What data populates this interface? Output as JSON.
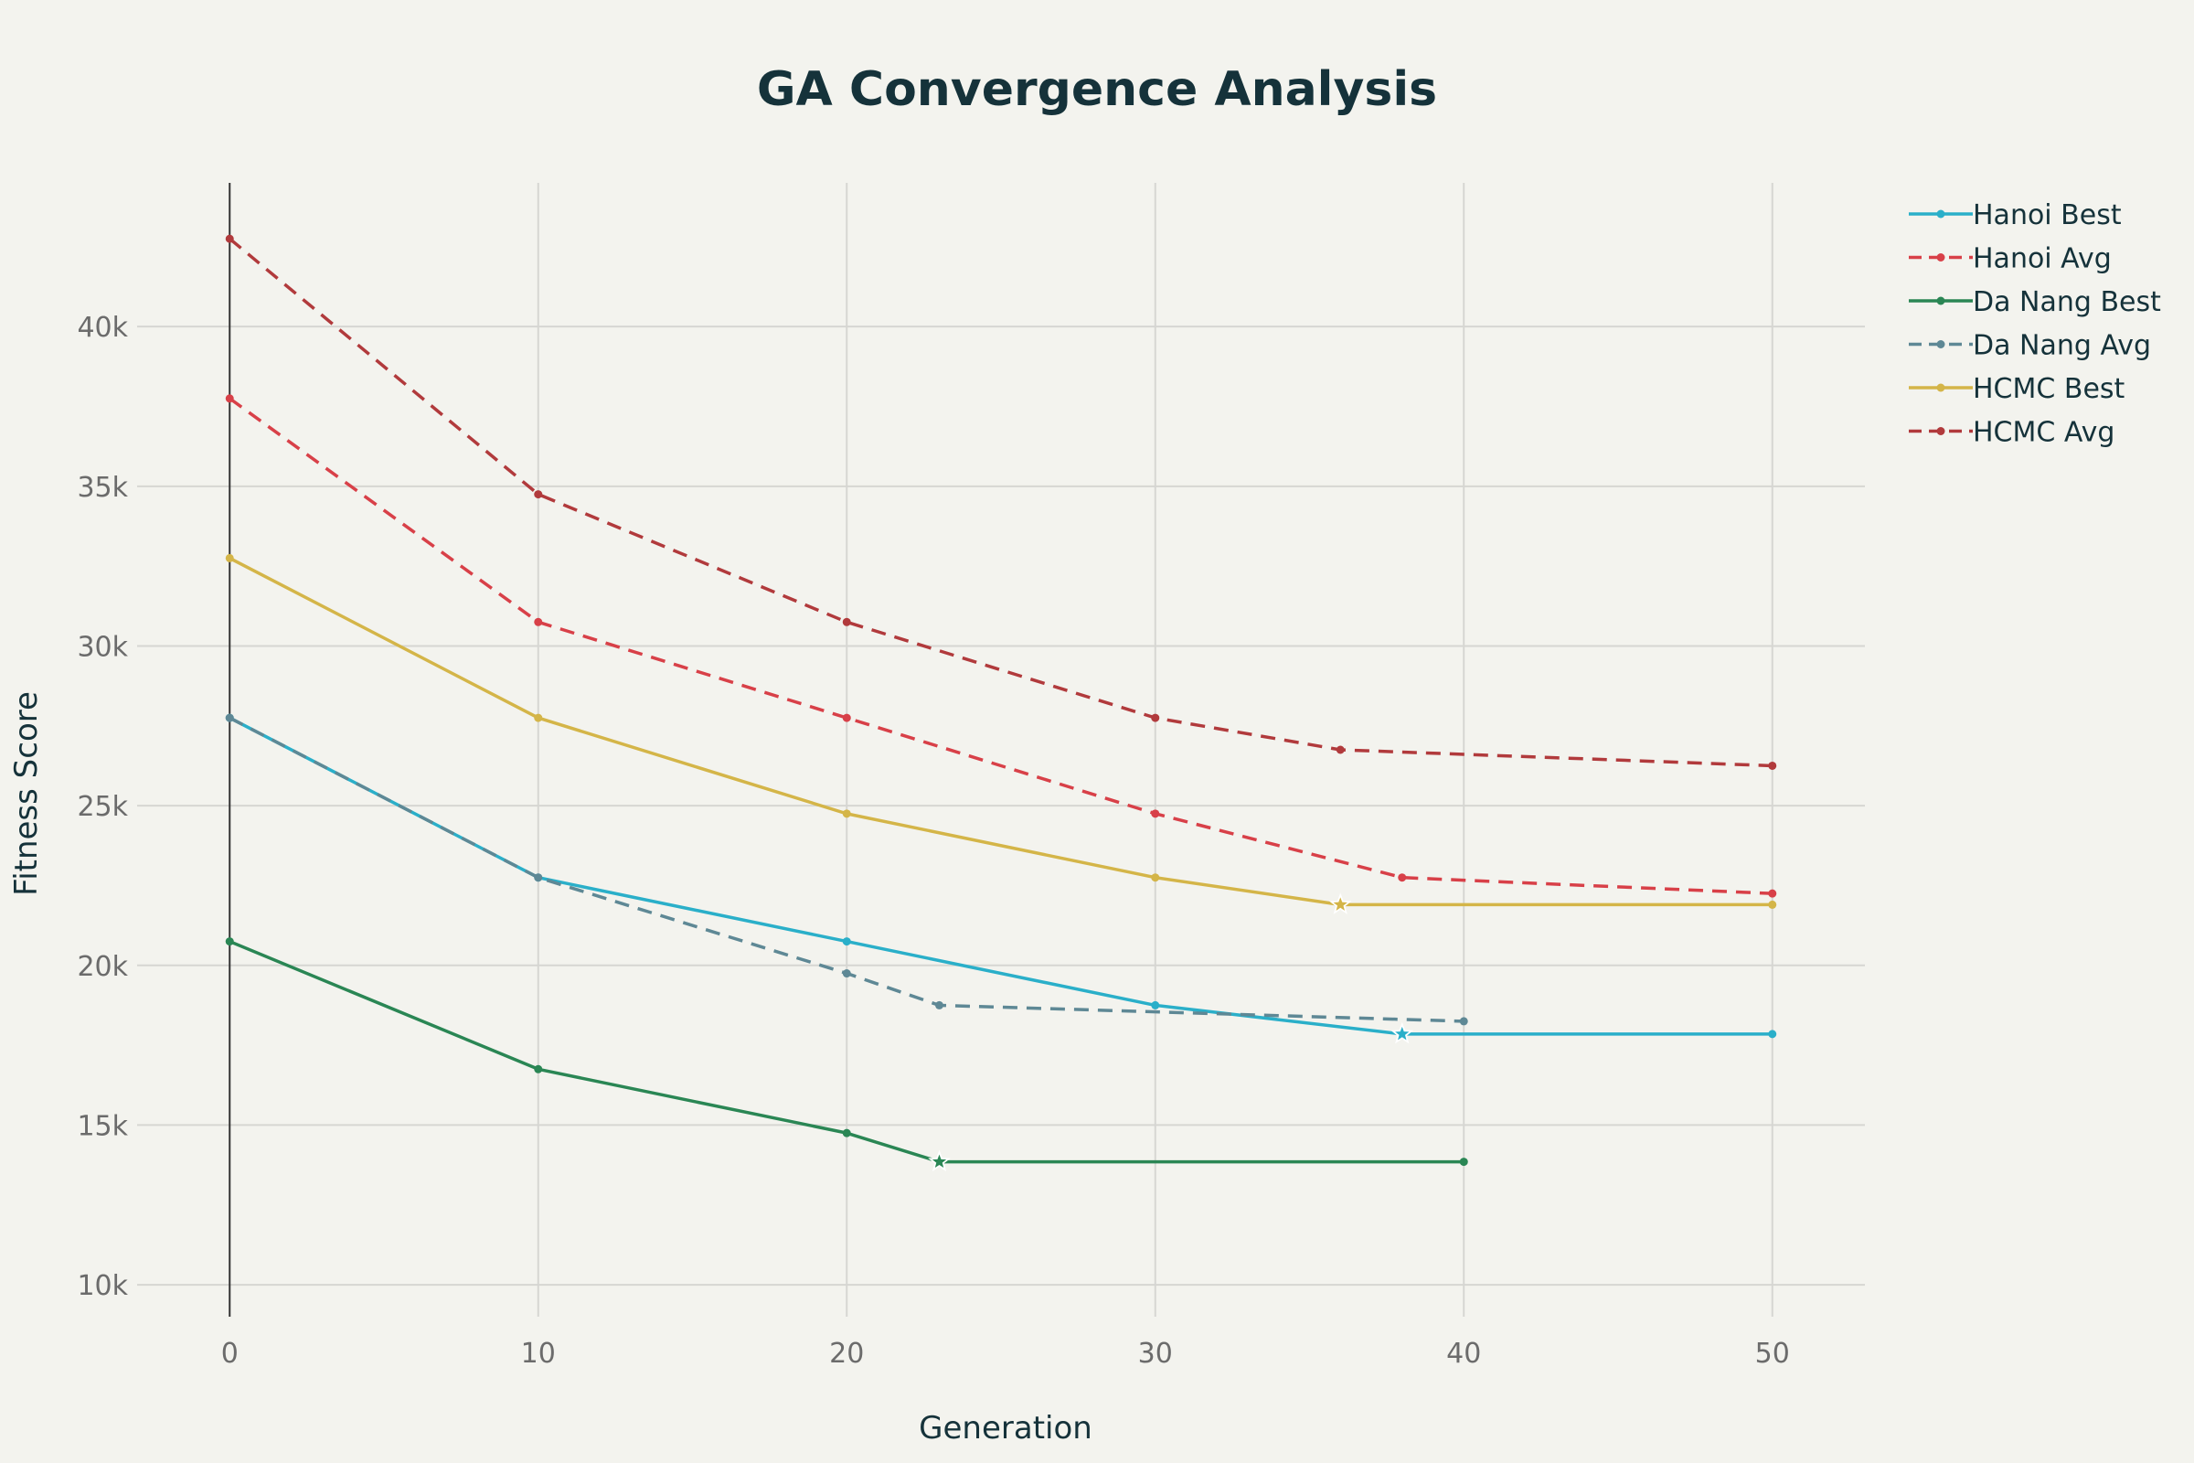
{
  "chart_data": {
    "type": "line",
    "title": "GA Convergence Analysis",
    "xlabel": "Generation",
    "ylabel": "Fitness Score",
    "xlim": [
      -3,
      53
    ],
    "ylim": [
      9000,
      44500
    ],
    "x_ticks": [
      0,
      10,
      20,
      30,
      40,
      50
    ],
    "y_ticks": [
      10000,
      15000,
      20000,
      25000,
      30000,
      35000,
      40000
    ],
    "x_tick_labels": [
      "0",
      "10",
      "20",
      "30",
      "40",
      "50"
    ],
    "y_tick_labels": [
      "10k",
      "15k",
      "20k",
      "25k",
      "30k",
      "35k",
      "40k"
    ],
    "grid": true,
    "legend_position": "top-right",
    "series": [
      {
        "name": "Hanoi Best",
        "color": "#2aafc9",
        "dash": "solid",
        "points": [
          [
            0,
            27750
          ],
          [
            10,
            22750
          ],
          [
            20,
            20750
          ],
          [
            30,
            18750
          ],
          [
            38,
            17850
          ],
          [
            50,
            17850
          ]
        ],
        "convergence_marker": [
          38,
          17850
        ]
      },
      {
        "name": "Hanoi Avg",
        "color": "#d84048",
        "dash": "dashed",
        "points": [
          [
            0,
            37750
          ],
          [
            10,
            30750
          ],
          [
            20,
            27750
          ],
          [
            30,
            24750
          ],
          [
            38,
            22750
          ],
          [
            50,
            22250
          ]
        ]
      },
      {
        "name": "Da Nang Best",
        "color": "#2a8654",
        "dash": "solid",
        "points": [
          [
            0,
            20750
          ],
          [
            10,
            16750
          ],
          [
            20,
            14750
          ],
          [
            23,
            13850
          ],
          [
            40,
            13850
          ]
        ],
        "convergence_marker": [
          23,
          13850
        ]
      },
      {
        "name": "Da Nang Avg",
        "color": "#5e8895",
        "dash": "dashed",
        "points": [
          [
            0,
            27750
          ],
          [
            10,
            22750
          ],
          [
            20,
            19750
          ],
          [
            23,
            18750
          ],
          [
            40,
            18250
          ]
        ]
      },
      {
        "name": "HCMC Best",
        "color": "#d4b548",
        "dash": "solid",
        "points": [
          [
            0,
            32750
          ],
          [
            10,
            27750
          ],
          [
            20,
            24750
          ],
          [
            30,
            22750
          ],
          [
            36,
            21900
          ],
          [
            50,
            21900
          ]
        ],
        "convergence_marker": [
          36,
          21900
        ]
      },
      {
        "name": "HCMC Avg",
        "color": "#b13a3c",
        "dash": "dashed",
        "points": [
          [
            0,
            42750
          ],
          [
            10,
            34750
          ],
          [
            20,
            30750
          ],
          [
            30,
            27750
          ],
          [
            36,
            26750
          ],
          [
            50,
            26250
          ]
        ]
      }
    ]
  }
}
